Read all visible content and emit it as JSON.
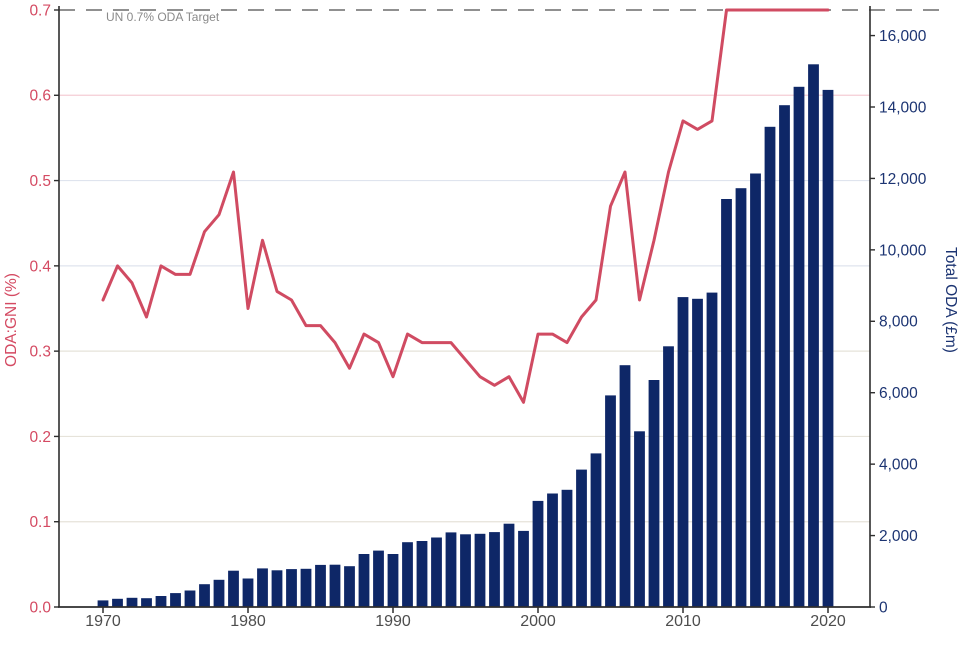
{
  "chart_data": {
    "type": "bar+line dual-axis",
    "title": "",
    "years": [
      1970,
      1971,
      1972,
      1973,
      1974,
      1975,
      1976,
      1977,
      1978,
      1979,
      1980,
      1981,
      1982,
      1983,
      1984,
      1985,
      1986,
      1987,
      1988,
      1989,
      1990,
      1991,
      1992,
      1993,
      1994,
      1995,
      1996,
      1997,
      1998,
      1999,
      2000,
      2001,
      2002,
      2003,
      2004,
      2005,
      2006,
      2007,
      2008,
      2009,
      2010,
      2011,
      2012,
      2013,
      2014,
      2015,
      2016,
      2017,
      2018,
      2019,
      2020
    ],
    "series": [
      {
        "name": "Total ODA (£m)",
        "type": "bar",
        "axis": "right",
        "values": [
          186,
          231,
          259,
          246,
          307,
          389,
          462,
          638,
          763,
          1016,
          797,
          1081,
          1028,
          1061,
          1069,
          1180,
          1185,
          1142,
          1485,
          1578,
          1485,
          1815,
          1848,
          1945,
          2089,
          2037,
          2051,
          2096,
          2332,
          2132,
          2972,
          3179,
          3282,
          3847,
          4302,
          5926,
          6770,
          4921,
          6356,
          7300,
          8677,
          8629,
          8802,
          11424,
          11726,
          12138,
          13445,
          14050,
          14566,
          15197,
          14480
        ]
      },
      {
        "name": "ODA:GNI (%)",
        "type": "line",
        "axis": "left",
        "values": [
          0.36,
          0.4,
          0.38,
          0.34,
          0.4,
          0.39,
          0.39,
          0.44,
          0.46,
          0.51,
          0.35,
          0.43,
          0.37,
          0.36,
          0.33,
          0.33,
          0.31,
          0.28,
          0.32,
          0.31,
          0.27,
          0.32,
          0.31,
          0.31,
          0.31,
          0.29,
          0.27,
          0.26,
          0.27,
          0.24,
          0.32,
          0.32,
          0.31,
          0.34,
          0.36,
          0.47,
          0.51,
          0.36,
          0.43,
          0.51,
          0.57,
          0.56,
          0.57,
          0.7,
          0.7,
          0.7,
          0.7,
          0.7,
          0.7,
          0.7,
          0.7
        ]
      }
    ],
    "left_axis": {
      "title": "ODA:GNI (%)",
      "min": 0.0,
      "max": 0.7,
      "tick_values": [
        0.0,
        0.1,
        0.2,
        0.3,
        0.4,
        0.5,
        0.6,
        0.7
      ],
      "tick_labels": [
        "0.0",
        "0.1",
        "0.2",
        "0.3",
        "0.4",
        "0.5",
        "0.6",
        "0.7"
      ]
    },
    "right_axis": {
      "title": "Total ODA (£m)",
      "min": 0,
      "tick_values": [
        0,
        2000,
        4000,
        6000,
        8000,
        10000,
        12000,
        14000,
        16000
      ],
      "tick_labels": [
        "0",
        "2,000",
        "4,000",
        "6,000",
        "8,000",
        "10,000",
        "12,000",
        "14,000",
        "16,000"
      ]
    },
    "x_axis": {
      "tick_years": [
        1970,
        1980,
        1990,
        2000,
        2010,
        2020
      ],
      "tick_labels": [
        "1970",
        "1980",
        "1990",
        "2000",
        "2010",
        "2020"
      ]
    },
    "annotation": {
      "label": "UN 0.7% ODA Target",
      "value": 0.7,
      "line_style": "dashed"
    },
    "grid": {
      "show": true,
      "lines": [
        {
          "v": 0.1,
          "c": "#e6e3da"
        },
        {
          "v": 0.2,
          "c": "#e6e3da"
        },
        {
          "v": 0.3,
          "c": "#e6e3da"
        },
        {
          "v": 0.4,
          "c": "#dfe4ee"
        },
        {
          "v": 0.5,
          "c": "#dfe4ee"
        },
        {
          "v": 0.6,
          "c": "#f4cdd5"
        }
      ]
    },
    "colors": {
      "bar": "#0e2767",
      "line": "#d04b62",
      "left_axis_text": "#d44a62",
      "right_axis_text": "#1c3472",
      "x_axis_text": "#4d4d4d",
      "annotation_text": "#8a8a8a",
      "target_dash": "#909090",
      "spine": "#2e2e2e",
      "background": "#ffffff"
    }
  }
}
